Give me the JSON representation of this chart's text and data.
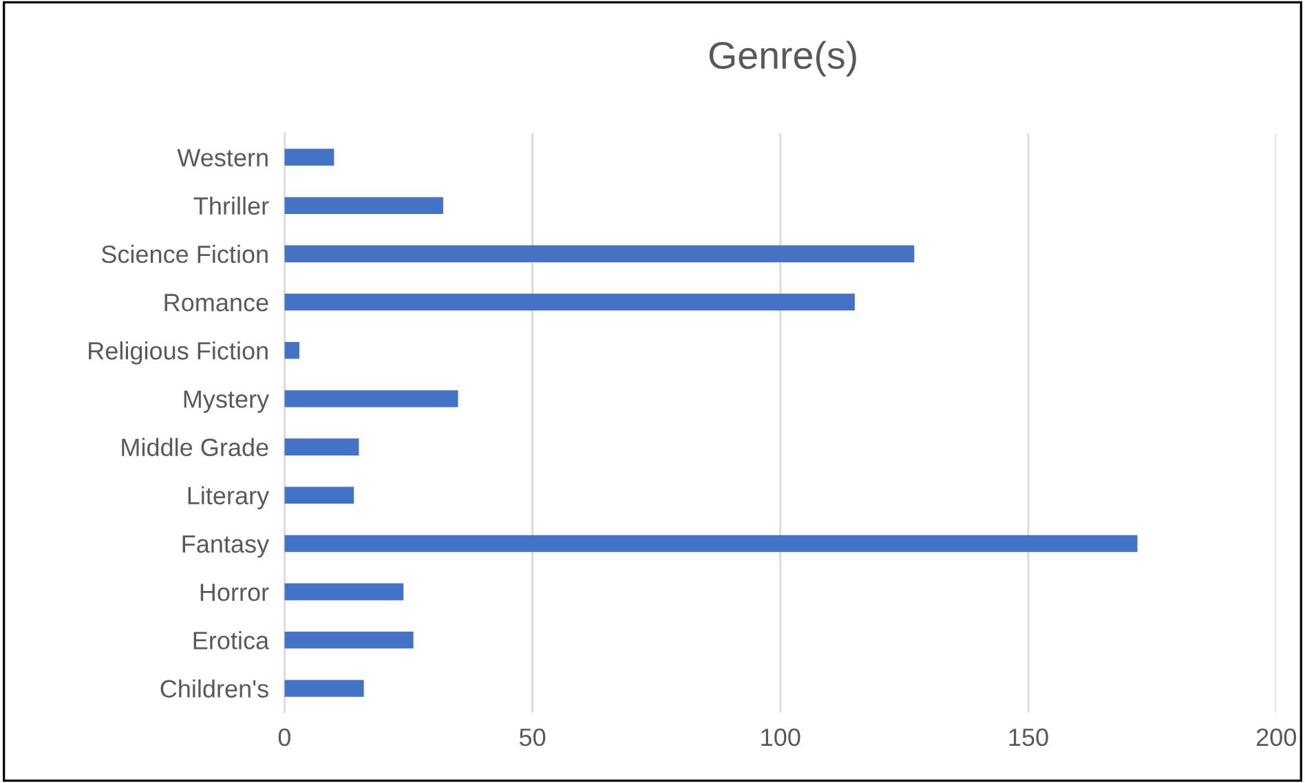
{
  "chart_data": {
    "type": "bar",
    "orientation": "horizontal",
    "title": "Genre(s)",
    "categories": [
      "Western",
      "Thriller",
      "Science Fiction",
      "Romance",
      "Religious Fiction",
      "Mystery",
      "Middle Grade",
      "Literary",
      "Fantasy",
      "Horror",
      "Erotica",
      "Children's"
    ],
    "values": [
      10,
      32,
      127,
      115,
      3,
      35,
      15,
      14,
      172,
      24,
      26,
      16
    ],
    "color": "#4472c4",
    "xlim": [
      0,
      200
    ],
    "xticks": [
      0,
      50,
      100,
      150,
      200
    ],
    "grid": "x",
    "legend": false
  }
}
